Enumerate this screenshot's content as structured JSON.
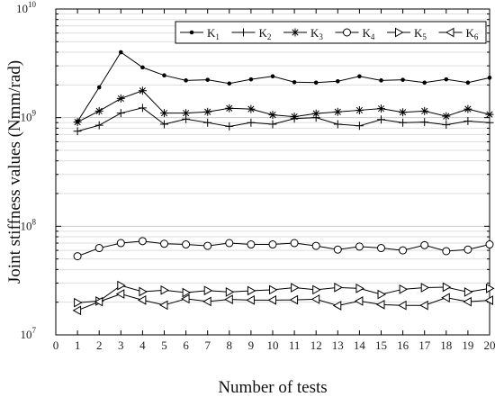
{
  "chart_data": {
    "type": "line",
    "title": "",
    "xlabel": "Number of tests",
    "ylabel": "Joint stiffness values (Nmm/rad)",
    "xlim": [
      0,
      20
    ],
    "ylim": [
      10000000,
      10000000000
    ],
    "yscale": "log",
    "grid": true,
    "legend_position": "top-right",
    "x_ticks": [
      "0",
      "1",
      "2",
      "3",
      "4",
      "5",
      "6",
      "7",
      "8",
      "9",
      "10",
      "11",
      "12",
      "13",
      "14",
      "15",
      "16",
      "17",
      "18",
      "19",
      "20"
    ],
    "y_ticks": [
      {
        "value": 10000000,
        "base": "10",
        "exp": "7"
      },
      {
        "value": 100000000,
        "base": "10",
        "exp": "8"
      },
      {
        "value": 1000000000,
        "base": "10",
        "exp": "9"
      },
      {
        "value": 10000000000,
        "base": "10",
        "exp": "10"
      }
    ],
    "x": [
      1,
      2,
      3,
      4,
      5,
      6,
      7,
      8,
      9,
      10,
      11,
      12,
      13,
      14,
      15,
      16,
      17,
      18,
      19,
      20
    ],
    "series": [
      {
        "name": "K",
        "sub": "1",
        "marker": "dot",
        "values": [
          920000000,
          1900000000,
          4000000000,
          2900000000,
          2450000000,
          2200000000,
          2230000000,
          2060000000,
          2250000000,
          2400000000,
          2120000000,
          2100000000,
          2160000000,
          2400000000,
          2200000000,
          2230000000,
          2100000000,
          2250000000,
          2100000000,
          2330000000
        ]
      },
      {
        "name": "K",
        "sub": "2",
        "marker": "plus",
        "values": [
          750000000,
          850000000,
          1100000000,
          1230000000,
          870000000,
          970000000,
          900000000,
          830000000,
          900000000,
          870000000,
          980000000,
          1000000000,
          870000000,
          840000000,
          960000000,
          900000000,
          910000000,
          860000000,
          930000000,
          900000000
        ]
      },
      {
        "name": "K",
        "sub": "3",
        "marker": "star",
        "values": [
          910000000,
          1150000000,
          1500000000,
          1770000000,
          1100000000,
          1100000000,
          1130000000,
          1220000000,
          1200000000,
          1060000000,
          1020000000,
          1090000000,
          1130000000,
          1170000000,
          1210000000,
          1120000000,
          1150000000,
          1030000000,
          1200000000,
          1070000000
        ]
      },
      {
        "name": "K",
        "sub": "4",
        "marker": "circle",
        "values": [
          53000000,
          63000000,
          70000000,
          73000000,
          69000000,
          68000000,
          66000000,
          70000000,
          68000000,
          68000000,
          70000000,
          66000000,
          61000000,
          65000000,
          63000000,
          60000000,
          67000000,
          59000000,
          61000000,
          68000000
        ]
      },
      {
        "name": "K",
        "sub": "5",
        "marker": "tri-right",
        "values": [
          19800000,
          20500000,
          28500000,
          25000000,
          25800000,
          24500000,
          25600000,
          24800000,
          25500000,
          26000000,
          27200000,
          26000000,
          27300000,
          26800000,
          23600000,
          26300000,
          27200000,
          27500000,
          24800000,
          26800000
        ]
      },
      {
        "name": "K",
        "sub": "6",
        "marker": "tri-left",
        "values": [
          16800000,
          20200000,
          23800000,
          20900000,
          18800000,
          21500000,
          20300000,
          21200000,
          20900000,
          20900000,
          21000000,
          21300000,
          18600000,
          20500000,
          19000000,
          18700000,
          18700000,
          22000000,
          20200000,
          20800000
        ]
      }
    ]
  }
}
